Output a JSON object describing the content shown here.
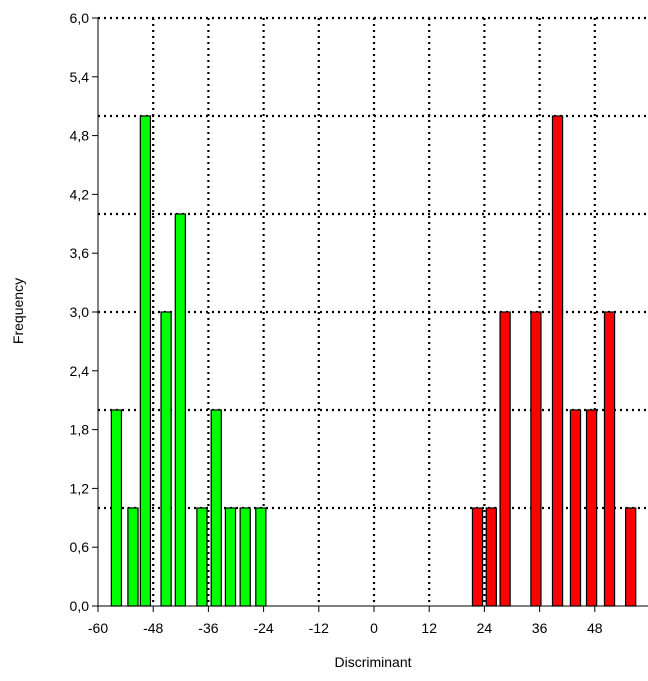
{
  "chart_data": {
    "type": "bar",
    "xlabel": "Discriminant",
    "ylabel": "Frequency",
    "xlim": [
      -60,
      58
    ],
    "ylim": [
      0,
      6
    ],
    "x_ticks": [
      -60,
      -48,
      -36,
      -24,
      -12,
      0,
      12,
      24,
      36,
      48
    ],
    "x_tick_labels": [
      "-60",
      "-48",
      "-36",
      "-24",
      "-12",
      "0",
      "12",
      "24",
      "36",
      "48"
    ],
    "y_ticks": [
      0,
      0.6,
      1.2,
      1.8,
      2.4,
      3.0,
      3.6,
      4.2,
      4.8,
      5.4,
      6.0
    ],
    "y_tick_labels": [
      "0,0",
      "0,6",
      "1,2",
      "1,8",
      "2,4",
      "3,0",
      "3,6",
      "4,2",
      "4,8",
      "5,4",
      "6,0"
    ],
    "grid": true,
    "bar_width": 2.2,
    "series": [
      {
        "color": "#00ff00",
        "x": [
          -56,
          -52.4,
          -49.7,
          -45.2,
          -42.1,
          -37.4,
          -34.3,
          -31.2,
          -28.0,
          -24.6
        ],
        "values": [
          2,
          1,
          5,
          3,
          4,
          1,
          2,
          1,
          1,
          1
        ]
      },
      {
        "color": "#ff0000",
        "x": [
          22.5,
          25.5,
          28.5,
          35.2,
          39.9,
          43.8,
          47.3,
          51.2,
          55.8
        ],
        "values": [
          1,
          1,
          3,
          3,
          5,
          2,
          2,
          3,
          1
        ]
      }
    ]
  }
}
